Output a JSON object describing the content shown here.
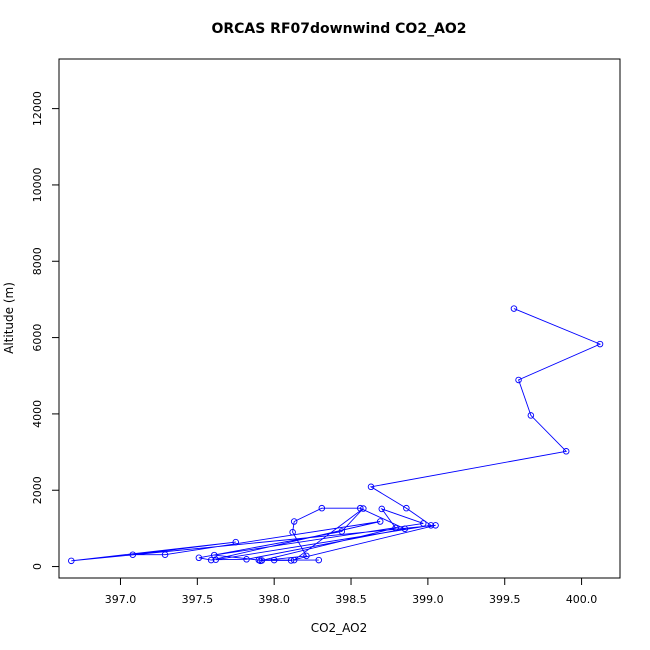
{
  "chart_data": {
    "type": "line",
    "title": "ORCAS RF07downwind CO2_AO2",
    "xlabel": "CO2_AO2",
    "ylabel": "Altitude (m)",
    "xlim": [
      396.6,
      400.25
    ],
    "ylim": [
      -300,
      13300
    ],
    "x_ticks": [
      397.0,
      397.5,
      398.0,
      398.5,
      399.0,
      399.5,
      400.0
    ],
    "x_tick_labels": [
      "397.0",
      "397.5",
      "398.0",
      "398.5",
      "399.0",
      "399.5",
      "400.0"
    ],
    "y_ticks": [
      0,
      2000,
      4000,
      6000,
      8000,
      10000,
      12000
    ],
    "y_tick_labels": [
      "0",
      "2000",
      "4000",
      "6000",
      "8000",
      "10000",
      "12000"
    ],
    "grid": false,
    "series": [
      {
        "color": "#0000ff",
        "marker": "open-circle",
        "points": [
          {
            "x": 399.56,
            "y": 6760
          },
          {
            "x": 400.12,
            "y": 5830
          },
          {
            "x": 399.59,
            "y": 4890
          },
          {
            "x": 399.67,
            "y": 3960
          },
          {
            "x": 399.9,
            "y": 3020
          },
          {
            "x": 398.63,
            "y": 2090
          },
          {
            "x": 398.86,
            "y": 1530
          },
          {
            "x": 399.02,
            "y": 1080
          },
          {
            "x": 397.62,
            "y": 180
          },
          {
            "x": 397.82,
            "y": 190
          },
          {
            "x": 398.85,
            "y": 990
          },
          {
            "x": 398.56,
            "y": 1530
          },
          {
            "x": 398.31,
            "y": 1530
          },
          {
            "x": 398.13,
            "y": 1180
          },
          {
            "x": 398.12,
            "y": 900
          },
          {
            "x": 398.21,
            "y": 280
          },
          {
            "x": 397.91,
            "y": 150
          },
          {
            "x": 398.79,
            "y": 1010
          },
          {
            "x": 398.7,
            "y": 1510
          },
          {
            "x": 398.97,
            "y": 1130
          },
          {
            "x": 397.61,
            "y": 300
          },
          {
            "x": 397.92,
            "y": 160
          },
          {
            "x": 398.11,
            "y": 160
          },
          {
            "x": 399.05,
            "y": 1080
          },
          {
            "x": 396.68,
            "y": 150
          },
          {
            "x": 397.75,
            "y": 640
          },
          {
            "x": 397.08,
            "y": 310
          },
          {
            "x": 397.29,
            "y": 310
          },
          {
            "x": 398.69,
            "y": 1180
          },
          {
            "x": 397.59,
            "y": 170
          },
          {
            "x": 397.51,
            "y": 230
          },
          {
            "x": 398.44,
            "y": 920
          },
          {
            "x": 398.58,
            "y": 1520
          },
          {
            "x": 398.13,
            "y": 170
          },
          {
            "x": 397.9,
            "y": 170
          },
          {
            "x": 398.0,
            "y": 170
          },
          {
            "x": 398.29,
            "y": 170
          }
        ]
      }
    ]
  }
}
